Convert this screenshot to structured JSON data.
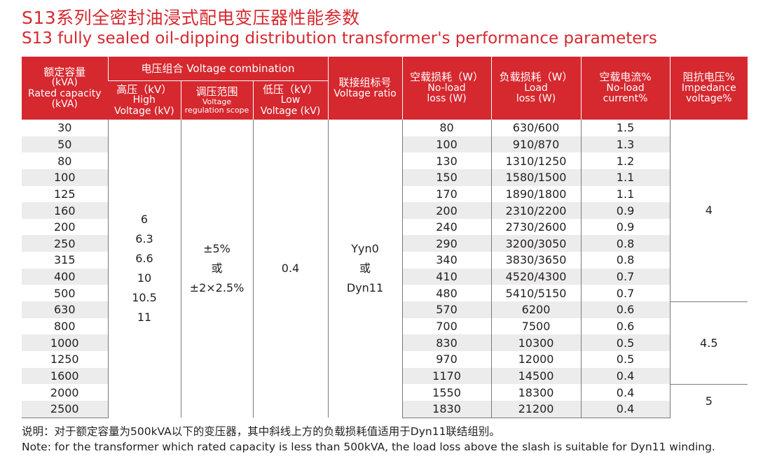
{
  "title_cn": "S13系列全密封油浸式配电变压器性能参数",
  "title_en": "S13 fully sealed oil-dipping distribution transformer's performance parameters",
  "headers": {
    "rated_capacity": {
      "cn": "额定容量",
      "unit": "(kVA)",
      "en1": "Rated capacity",
      "en2": "(kVA)"
    },
    "voltage_combination": "电压组合 Voltage combination",
    "high_voltage": {
      "cn": "高压（kV）",
      "en1": "High",
      "en2": "Voltage (kV)"
    },
    "regulation": {
      "cn": "调压范围",
      "en1": "Voltage",
      "en2": "regulation scope"
    },
    "low_voltage": {
      "cn": "低压（kV）",
      "en1": "Low",
      "en2": "Voltage (kV)"
    },
    "voltage_ratio": {
      "cn": "联接组标号",
      "en": "Voltage ratio"
    },
    "no_load_loss": {
      "cn": "空载损耗（W）",
      "en1": "No-load",
      "en2": "loss (W)"
    },
    "load_loss": {
      "cn": "负载损耗（W）",
      "en1": "Load",
      "en2": "loss (W)"
    },
    "no_load_current": {
      "cn": "空载电流%",
      "en1": "No-load",
      "en2": "current%"
    },
    "impedance": {
      "cn": "阻抗电压%",
      "en1": "Impedance",
      "en2": "voltage%"
    }
  },
  "merged": {
    "high_voltage_values": [
      "6",
      "6.3",
      "6.6",
      "10",
      "10.5",
      "11"
    ],
    "regulation_values": [
      "±5%",
      "或",
      "±2×2.5%"
    ],
    "low_voltage": "0.4",
    "voltage_ratio_values": [
      "Yyn0",
      "或",
      "Dyn11"
    ],
    "impedance_groups": [
      "4",
      "4.5",
      "5"
    ]
  },
  "rows": [
    {
      "capacity": "30",
      "no_load_loss": "80",
      "load_loss": "630/600",
      "no_load_current": "1.5"
    },
    {
      "capacity": "50",
      "no_load_loss": "100",
      "load_loss": "910/870",
      "no_load_current": "1.3"
    },
    {
      "capacity": "80",
      "no_load_loss": "130",
      "load_loss": "1310/1250",
      "no_load_current": "1.2"
    },
    {
      "capacity": "100",
      "no_load_loss": "150",
      "load_loss": "1580/1500",
      "no_load_current": "1.1"
    },
    {
      "capacity": "125",
      "no_load_loss": "170",
      "load_loss": "1890/1800",
      "no_load_current": "1.1"
    },
    {
      "capacity": "160",
      "no_load_loss": "200",
      "load_loss": "2310/2200",
      "no_load_current": "0.9"
    },
    {
      "capacity": "200",
      "no_load_loss": "240",
      "load_loss": "2730/2600",
      "no_load_current": "0.9"
    },
    {
      "capacity": "250",
      "no_load_loss": "290",
      "load_loss": "3200/3050",
      "no_load_current": "0.8"
    },
    {
      "capacity": "315",
      "no_load_loss": "340",
      "load_loss": "3830/3650",
      "no_load_current": "0.8"
    },
    {
      "capacity": "400",
      "no_load_loss": "410",
      "load_loss": "4520/4300",
      "no_load_current": "0.7"
    },
    {
      "capacity": "500",
      "no_load_loss": "480",
      "load_loss": "5410/5150",
      "no_load_current": "0.7"
    },
    {
      "capacity": "630",
      "no_load_loss": "570",
      "load_loss": "6200",
      "no_load_current": "0.6"
    },
    {
      "capacity": "800",
      "no_load_loss": "700",
      "load_loss": "7500",
      "no_load_current": "0.6"
    },
    {
      "capacity": "1000",
      "no_load_loss": "830",
      "load_loss": "10300",
      "no_load_current": "0.5"
    },
    {
      "capacity": "1250",
      "no_load_loss": "970",
      "load_loss": "12000",
      "no_load_current": "0.5"
    },
    {
      "capacity": "1600",
      "no_load_loss": "1170",
      "load_loss": "14500",
      "no_load_current": "0.4"
    },
    {
      "capacity": "2000",
      "no_load_loss": "1550",
      "load_loss": "18300",
      "no_load_current": "0.4"
    },
    {
      "capacity": "2500",
      "no_load_loss": "1830",
      "load_loss": "21200",
      "no_load_current": "0.4"
    }
  ],
  "note_cn": "说明：对于额定容量为500kVA以下的变压器，其中斜线上方的负载损耗值适用于Dyn11联结组别。",
  "note_en": "Note: for the transformer which rated capacity is less than 500kVA, the load loss above the slash is suitable for Dyn11 winding."
}
